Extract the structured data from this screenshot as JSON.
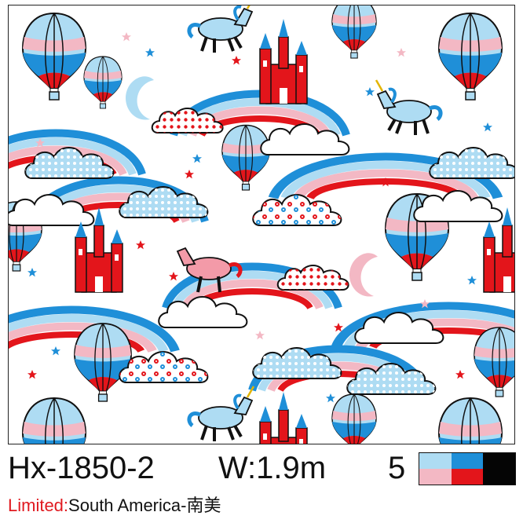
{
  "product": {
    "code": "Hx-1850-2",
    "width": "W:1.9m",
    "color_count": "5",
    "limited_label": "Limited:",
    "region": "South America-南美"
  },
  "palette": {
    "light_blue": "#aedcf3",
    "pink": "#f3b8c4",
    "blue": "#1f8fd8",
    "red": "#e3151b",
    "black": "#050505"
  },
  "icons": {
    "pattern": "kids-fabric-print",
    "motifs": [
      "hot-air-balloon",
      "unicorn",
      "castle",
      "rainbow",
      "cloud",
      "moon",
      "star"
    ]
  }
}
